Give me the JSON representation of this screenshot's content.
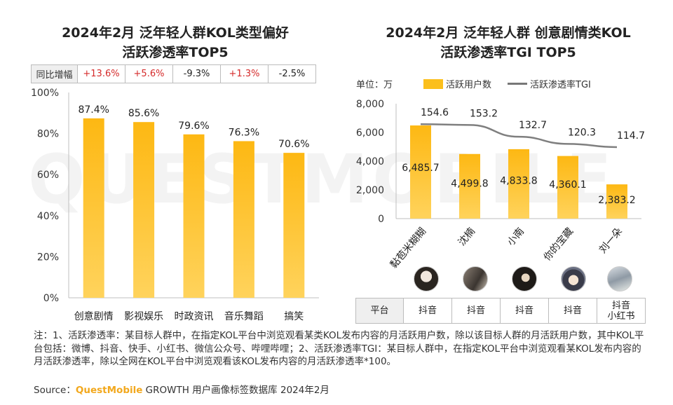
{
  "watermark": "QUESTMOBILE",
  "colors": {
    "bar_top": "#fdb813",
    "bar_bottom": "#ffd35c",
    "line": "#7f7f7f",
    "positive": "#d52a2a",
    "brand": "#f2a81d"
  },
  "left": {
    "title_line1": "2024年2月 泛年轻人群KOL类型偏好",
    "title_line2": "活跃渗透率TOP5",
    "yoy_label": "同比增幅",
    "yoy": [
      "+13.6%",
      "+5.6%",
      "-9.3%",
      "+1.3%",
      "-2.5%"
    ]
  },
  "right": {
    "title_line1": "2024年2月 泛年轻人群 创意剧情类KOL",
    "title_line2": "活跃渗透率TGI TOP5",
    "unit_label": "单位：万",
    "legend_bar": "活跃用户数",
    "legend_line": "活跃渗透率TGI",
    "platform_label": "平台",
    "platforms": [
      "抖音",
      "抖音",
      "抖音",
      "抖音",
      "抖音\n小红书"
    ],
    "avatars": [
      "person-avatar",
      "person-avatar",
      "person-avatar",
      "anime-avatar",
      "person-avatar"
    ]
  },
  "chart_data": [
    {
      "type": "bar",
      "title": "2024年2月 泛年轻人群KOL类型偏好活跃渗透率TOP5",
      "categories": [
        "创意剧情",
        "影视娱乐",
        "时政资讯",
        "音乐舞蹈",
        "搞笑"
      ],
      "values": [
        87.4,
        85.6,
        79.6,
        76.3,
        70.6
      ],
      "labels": [
        "87.4%",
        "85.6%",
        "79.6%",
        "76.3%",
        "70.6%"
      ],
      "yticks": [
        "0%",
        "20%",
        "40%",
        "60%",
        "80%",
        "100%"
      ],
      "ylim": [
        0,
        100
      ],
      "ylabel": "",
      "xlabel": ""
    },
    {
      "type": "bar+line",
      "title": "2024年2月 泛年轻人群 创意剧情类KOL活跃渗透率TGI TOP5",
      "categories": [
        "黏苞米糊糊",
        "沈楠",
        "小南",
        "你的宝藏",
        "刘一朵"
      ],
      "series": [
        {
          "name": "活跃用户数",
          "type": "bar",
          "values": [
            6485.7,
            4499.8,
            4833.8,
            4360.1,
            2383.2
          ],
          "labels": [
            "6,485.7",
            "4,499.8",
            "4,833.8",
            "4,360.1",
            "2,383.2"
          ]
        },
        {
          "name": "活跃渗透率TGI",
          "type": "line",
          "values": [
            154.6,
            153.2,
            132.7,
            120.3,
            114.7
          ],
          "labels": [
            "154.6",
            "153.2",
            "132.7",
            "120.3",
            "114.7"
          ]
        }
      ],
      "yticks": [
        "0",
        "2,000",
        "4,000",
        "6,000",
        "8,000"
      ],
      "ylim": [
        0,
        8000
      ],
      "line_ylim": [
        0,
        200
      ]
    }
  ],
  "note": "注：1、活跃渗透率：某目标人群中，在指定KOL平台中浏览观看某类KOL发布内容的月活跃用户数，除以该目标人群的月活跃用户数，其中KOL平台包括：微博、抖音、快手、小红书、微信公众号、哔哩哔哩；2、活跃渗透率TGI：某目标人群中，在指定KOL平台中浏览观看某KOL发布内容的月活跃渗透率，除以全网在KOL平台中浏览观看该KOL发布内容的月活跃渗透率*100。",
  "source_prefix": "Source：",
  "source_brand": "QuestMobile",
  "source_rest": " GROWTH 用户画像标签数据库 2024年2月"
}
